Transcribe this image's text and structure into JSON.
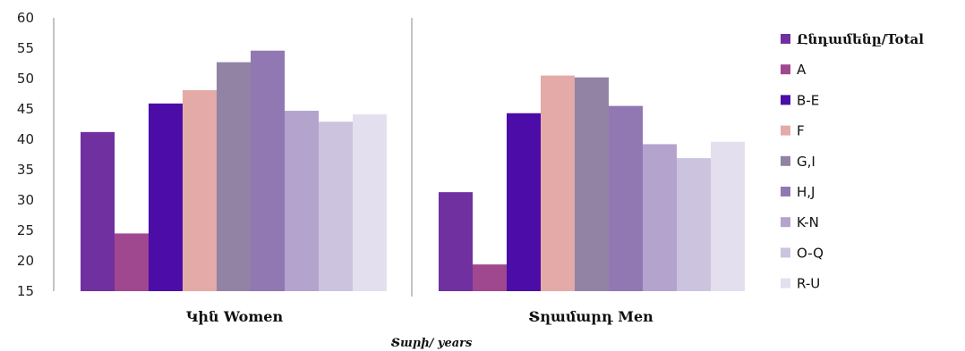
{
  "chart_data": {
    "type": "bar",
    "categories": [
      "Կին Women",
      "Տղամարդ Men"
    ],
    "series": [
      {
        "name": "Ընդամենը/Total",
        "color": "#7030a0",
        "values": [
          41.2,
          31.3
        ]
      },
      {
        "name": "A",
        "color": "#a0488f",
        "values": [
          24.5,
          19.4
        ]
      },
      {
        "name": "B-E",
        "color": "#4b0ca8",
        "values": [
          45.9,
          44.3
        ]
      },
      {
        "name": "F",
        "color": "#e3aaa8",
        "values": [
          48.1,
          50.5
        ]
      },
      {
        "name": "G,I",
        "color": "#9283a5",
        "values": [
          52.7,
          50.2
        ]
      },
      {
        "name": "H,J",
        "color": "#9178b3",
        "values": [
          54.6,
          45.5
        ]
      },
      {
        "name": "K-N",
        "color": "#b4a3cd",
        "values": [
          44.7,
          39.2
        ]
      },
      {
        "name": "O-Q",
        "color": "#ccc3df",
        "values": [
          42.9,
          36.9
        ]
      },
      {
        "name": "R-U",
        "color": "#e4dfee",
        "values": [
          44.1,
          39.6
        ]
      }
    ],
    "yticks": [
      15,
      20,
      25,
      30,
      35,
      40,
      45,
      50,
      55,
      60
    ],
    "ylim": [
      15,
      60
    ],
    "xlabel": "Տարի/ years",
    "title": "",
    "ylabel": "",
    "legend_position": "right",
    "grid": false
  }
}
